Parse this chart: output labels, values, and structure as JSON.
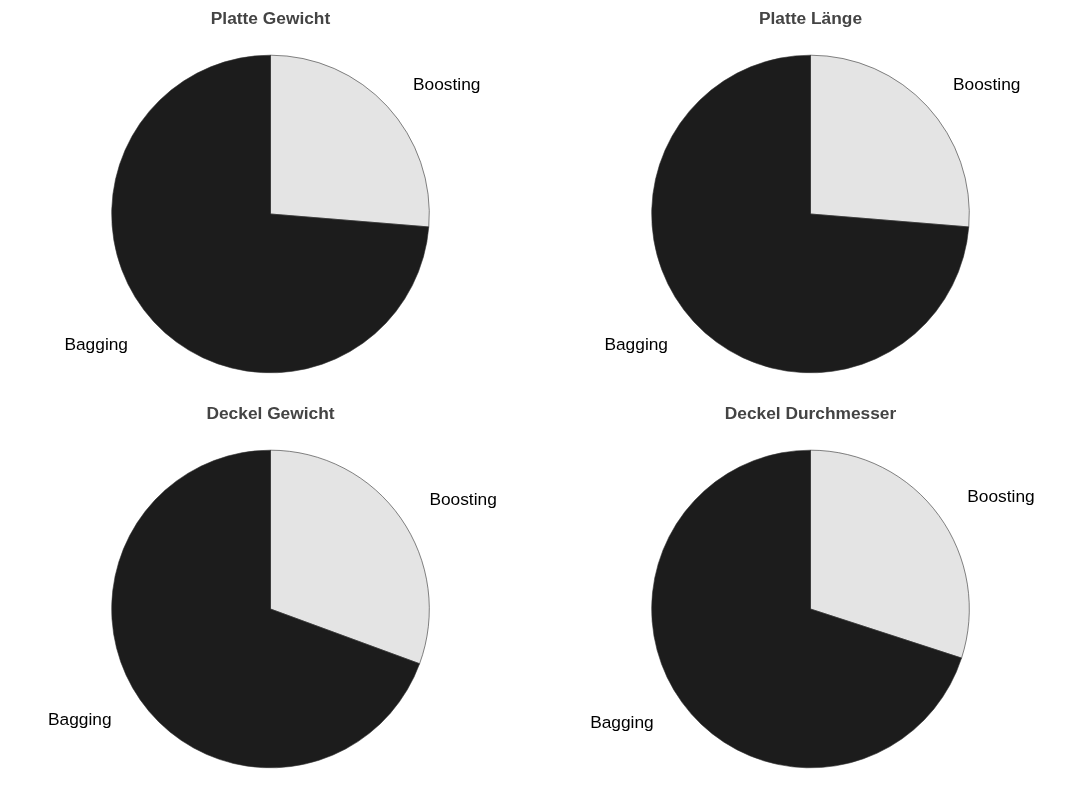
{
  "chart_data": [
    {
      "type": "pie",
      "title": "Platte Gewicht",
      "categories": [
        "Boosting",
        "Bagging"
      ],
      "values": [
        26.3,
        73.7
      ],
      "colors": [
        "#e4e4e4",
        "#1c1c1c"
      ]
    },
    {
      "type": "pie",
      "title": "Platte Länge",
      "categories": [
        "Boosting",
        "Bagging"
      ],
      "values": [
        26.3,
        73.7
      ],
      "colors": [
        "#e4e4e4",
        "#1c1c1c"
      ]
    },
    {
      "type": "pie",
      "title": "Deckel Gewicht",
      "categories": [
        "Boosting",
        "Bagging"
      ],
      "values": [
        30.6,
        69.4
      ],
      "colors": [
        "#e4e4e4",
        "#1c1c1c"
      ]
    },
    {
      "type": "pie",
      "title": "Deckel Durchmesser",
      "categories": [
        "Boosting",
        "Bagging"
      ],
      "values": [
        30,
        70
      ],
      "colors": [
        "#e4e4e4",
        "#1c1c1c"
      ]
    }
  ]
}
